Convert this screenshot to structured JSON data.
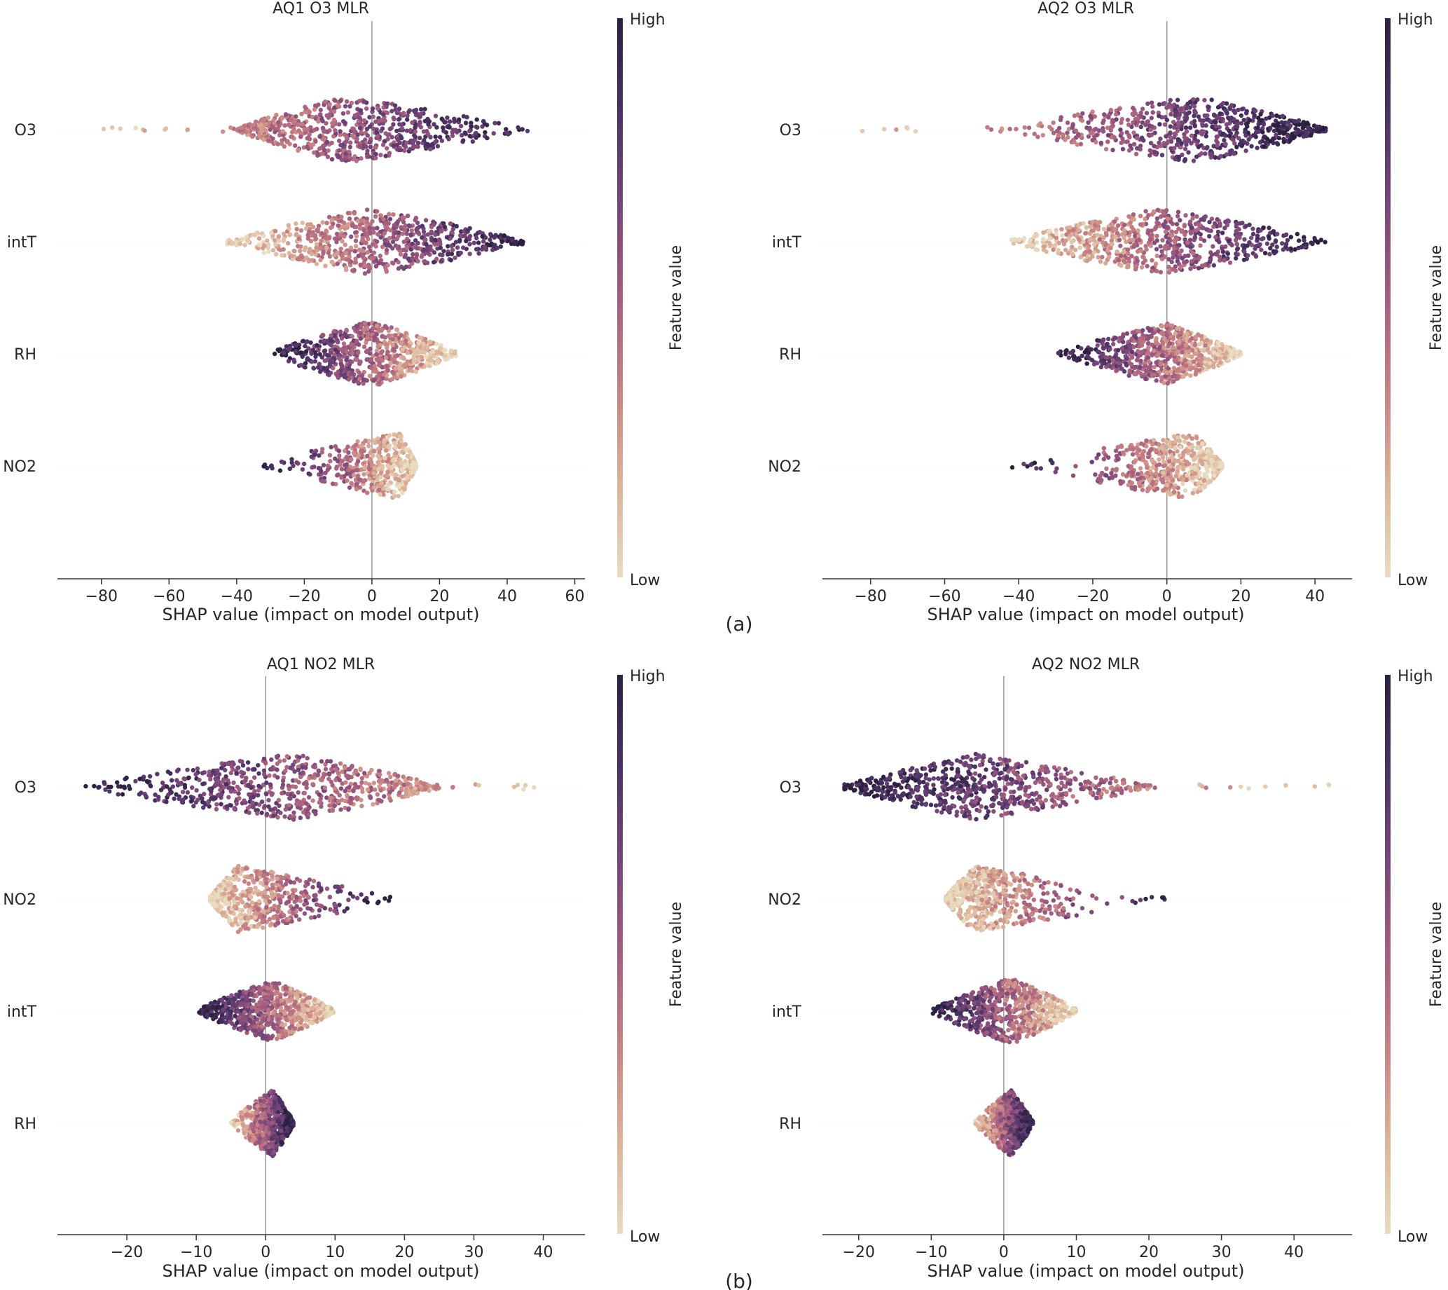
{
  "figure": {
    "labels": [
      "(a)",
      "(b)"
    ]
  },
  "colorbar": {
    "high_label": "High",
    "low_label": "Low",
    "axis_label": "Feature value",
    "colors_low_to_high": [
      "#e9dbc0",
      "#dcb399",
      "#c98282",
      "#a45e7f",
      "#77467a",
      "#4a3264",
      "#2b213f"
    ]
  },
  "chart_data": [
    {
      "type": "scatter",
      "subtype": "shap-beeswarm",
      "title": "AQ1 O3 MLR",
      "xlabel": "SHAP value (impact on model output)",
      "ylabel": "",
      "xlim": [
        -93,
        63
      ],
      "xticks": [
        -80,
        -60,
        -40,
        -20,
        0,
        20,
        40,
        60
      ],
      "features": [
        {
          "name": "O3",
          "min": -86,
          "max": 55,
          "core_min": -40,
          "core_max": 45,
          "peak": -8,
          "height": 0.72,
          "color_slope": 1
        },
        {
          "name": "intT",
          "min": -43,
          "max": 47,
          "core_min": -43,
          "core_max": 45,
          "peak": 0,
          "height": 0.72,
          "color_slope": 1
        },
        {
          "name": "RH",
          "min": -30,
          "max": 25,
          "core_min": -30,
          "core_max": 25,
          "peak": 0,
          "height": 0.72,
          "color_slope": -1
        },
        {
          "name": "NO2",
          "min": -33,
          "max": 13,
          "core_min": -33,
          "core_max": 13,
          "peak": 8,
          "height": 0.72,
          "color_slope": -1
        }
      ]
    },
    {
      "type": "scatter",
      "subtype": "shap-beeswarm",
      "title": "AQ2 O3 MLR",
      "xlabel": "SHAP value (impact on model output)",
      "ylabel": "",
      "xlim": [
        -93,
        50
      ],
      "xticks": [
        -80,
        -60,
        -40,
        -20,
        0,
        20,
        40
      ],
      "features": [
        {
          "name": "O3",
          "min": -85,
          "max": 43,
          "core_min": -45,
          "core_max": 43,
          "peak": 8,
          "height": 0.72,
          "color_slope": 1
        },
        {
          "name": "intT",
          "min": -42,
          "max": 43,
          "core_min": -42,
          "core_max": 43,
          "peak": -2,
          "height": 0.72,
          "color_slope": 1
        },
        {
          "name": "RH",
          "min": -30,
          "max": 20,
          "core_min": -30,
          "core_max": 20,
          "peak": 0,
          "height": 0.66,
          "color_slope": -1
        },
        {
          "name": "NO2",
          "min": -43,
          "max": 15,
          "core_min": -38,
          "core_max": 15,
          "peak": 7,
          "height": 0.72,
          "color_slope": -1
        }
      ]
    },
    {
      "type": "scatter",
      "subtype": "shap-beeswarm",
      "title": "AQ1 NO2 MLR",
      "xlabel": "SHAP value (impact on model output)",
      "ylabel": "",
      "xlim": [
        -30,
        46
      ],
      "xticks": [
        -20,
        -10,
        0,
        10,
        20,
        30,
        40
      ],
      "features": [
        {
          "name": "O3",
          "min": -26,
          "max": 43,
          "core_min": -26,
          "core_max": 25,
          "peak": 4,
          "height": 0.72,
          "color_slope": -1
        },
        {
          "name": "NO2",
          "min": -8,
          "max": 18,
          "core_min": -8,
          "core_max": 18,
          "peak": -4,
          "height": 0.72,
          "color_slope": 1
        },
        {
          "name": "intT",
          "min": -10,
          "max": 10,
          "core_min": -10,
          "core_max": 10,
          "peak": 1,
          "height": 0.66,
          "color_slope": -1
        },
        {
          "name": "RH",
          "min": -5,
          "max": 4,
          "core_min": -5,
          "core_max": 4,
          "peak": 1,
          "height": 0.72,
          "color_slope": 1
        }
      ]
    },
    {
      "type": "scatter",
      "subtype": "shap-beeswarm",
      "title": "AQ2 NO2 MLR",
      "xlabel": "SHAP value (impact on model output)",
      "ylabel": "",
      "xlim": [
        -25,
        48
      ],
      "xticks": [
        -20,
        -10,
        0,
        10,
        20,
        30,
        40
      ],
      "features": [
        {
          "name": "O3",
          "min": -22,
          "max": 45,
          "core_min": -22,
          "core_max": 20,
          "peak": -4,
          "height": 0.72,
          "color_slope": -1
        },
        {
          "name": "NO2",
          "min": -8,
          "max": 24,
          "core_min": -8,
          "core_max": 20,
          "peak": -4,
          "height": 0.72,
          "color_slope": 1
        },
        {
          "name": "intT",
          "min": -10,
          "max": 10,
          "core_min": -10,
          "core_max": 10,
          "peak": 1,
          "height": 0.72,
          "color_slope": -1
        },
        {
          "name": "RH",
          "min": -4,
          "max": 4,
          "core_min": -4,
          "core_max": 4,
          "peak": 1,
          "height": 0.72,
          "color_slope": 1
        }
      ]
    }
  ]
}
